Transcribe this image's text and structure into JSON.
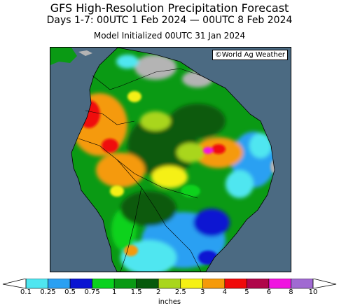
{
  "title": "GFS High-Resolution Precipitation Forecast",
  "subtitle": "Days 1-7: 00UTC 1 Feb 2024 — 00UTC 8 Feb 2024",
  "initialized": "Model Initialized 00UTC 31 Jan 2024",
  "credit": "©World Ag Weather",
  "colors": {
    "ocean": "#4b6a82",
    "dry_land": "#b4b4b4",
    "border_lines": "#000000"
  },
  "legend": {
    "units": "inches",
    "ticks": [
      "0.1",
      "0.25",
      "0.5",
      "0.75",
      "1",
      "1.5",
      "2",
      "2.5",
      "3",
      "4",
      "5",
      "6",
      "8",
      "10"
    ],
    "bins": [
      {
        "range": "0.1-0.25",
        "color": "#4fe6f0"
      },
      {
        "range": "0.25-0.5",
        "color": "#2aa0f2"
      },
      {
        "range": "0.5-0.75",
        "color": "#0a14d2"
      },
      {
        "range": "0.75-1",
        "color": "#0ad21e"
      },
      {
        "range": "1-1.5",
        "color": "#0a9a14"
      },
      {
        "range": "1.5-2",
        "color": "#075a0c"
      },
      {
        "range": "2-2.5",
        "color": "#a9d61c"
      },
      {
        "range": "2.5-3",
        "color": "#f5f014"
      },
      {
        "range": "3-4",
        "color": "#f59a0a"
      },
      {
        "range": "4-5",
        "color": "#f00a0a"
      },
      {
        "range": "5-6",
        "color": "#b0064a"
      },
      {
        "range": "6-8",
        "color": "#f014e0"
      },
      {
        "range": "8-10",
        "color": "#a06ad2"
      }
    ],
    "arrow_low_color": "#ffffff",
    "arrow_high_color": "#ffffff"
  }
}
